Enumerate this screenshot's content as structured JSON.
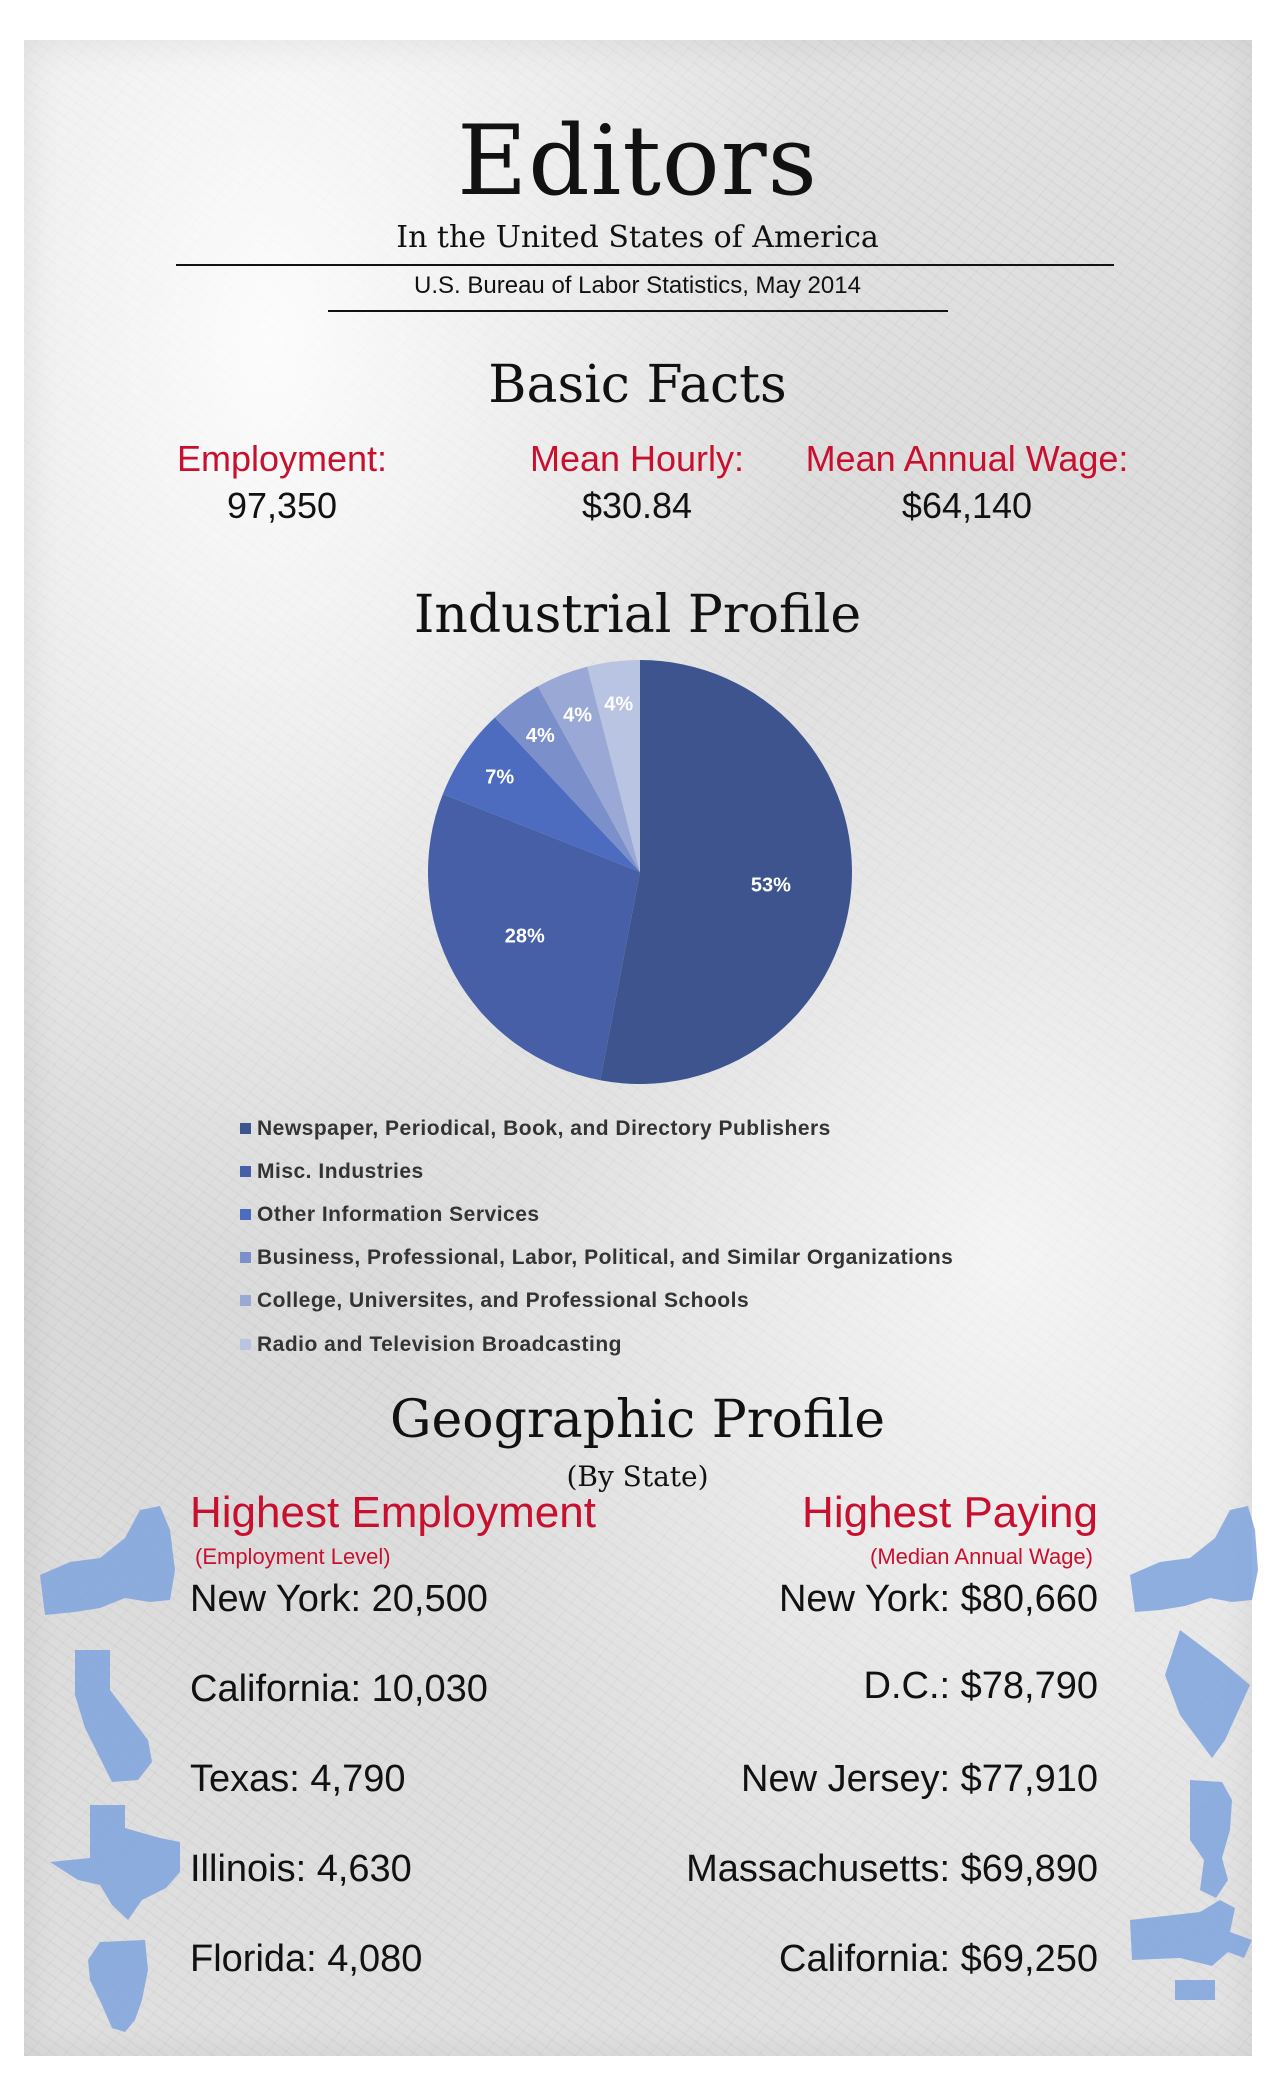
{
  "header": {
    "title": "Editors",
    "subtitle": "In the United States of America",
    "source": "U.S. Bureau of Labor Statistics, May 2014"
  },
  "basic_facts": {
    "title": "Basic Facts",
    "items": [
      {
        "label": "Employment:",
        "value": "97,350"
      },
      {
        "label": "Mean Hourly:",
        "value": "$30.84"
      },
      {
        "label": "Mean Annual Wage:",
        "value": "$64,140"
      }
    ]
  },
  "industrial_profile": {
    "title": "Industrial Profile"
  },
  "chart_data": {
    "type": "pie",
    "title": "Industrial Profile",
    "labels": [
      "Newspaper, Periodical, Book, and Directory Publishers",
      "Misc. Industries",
      "Other Information Services",
      "Business, Professional, Labor, Political, and Similar Organizations",
      "College, Universites, and Professional Schools",
      "Radio and Television Broadcasting"
    ],
    "values": [
      53,
      28,
      7,
      4,
      4,
      4
    ],
    "value_labels": [
      "53%",
      "28%",
      "7%",
      "4%",
      "4%",
      "4%"
    ],
    "colors": [
      "#3d548f",
      "#465fa6",
      "#4e6cbf",
      "#7b8fcb",
      "#9aa8d6",
      "#b9c3e2"
    ],
    "legend_position": "bottom-left"
  },
  "geographic_profile": {
    "title": "Geographic Profile",
    "subtitle": "(By State)",
    "highest_employment": {
      "heading": "Highest Employment",
      "subheading": "(Employment Level)",
      "rows": [
        "New York: 20,500",
        "California: 10,030",
        "Texas: 4,790",
        "Illinois: 4,630",
        "Florida: 4,080"
      ]
    },
    "highest_paying": {
      "heading": "Highest Paying",
      "subheading": "(Median Annual Wage)",
      "rows": [
        "New York: $80,660",
        "D.C.: $78,790",
        "New Jersey: $77,910",
        "Massachusetts: $69,890",
        "California: $69,250"
      ]
    },
    "map_color": "#7fa3de"
  }
}
